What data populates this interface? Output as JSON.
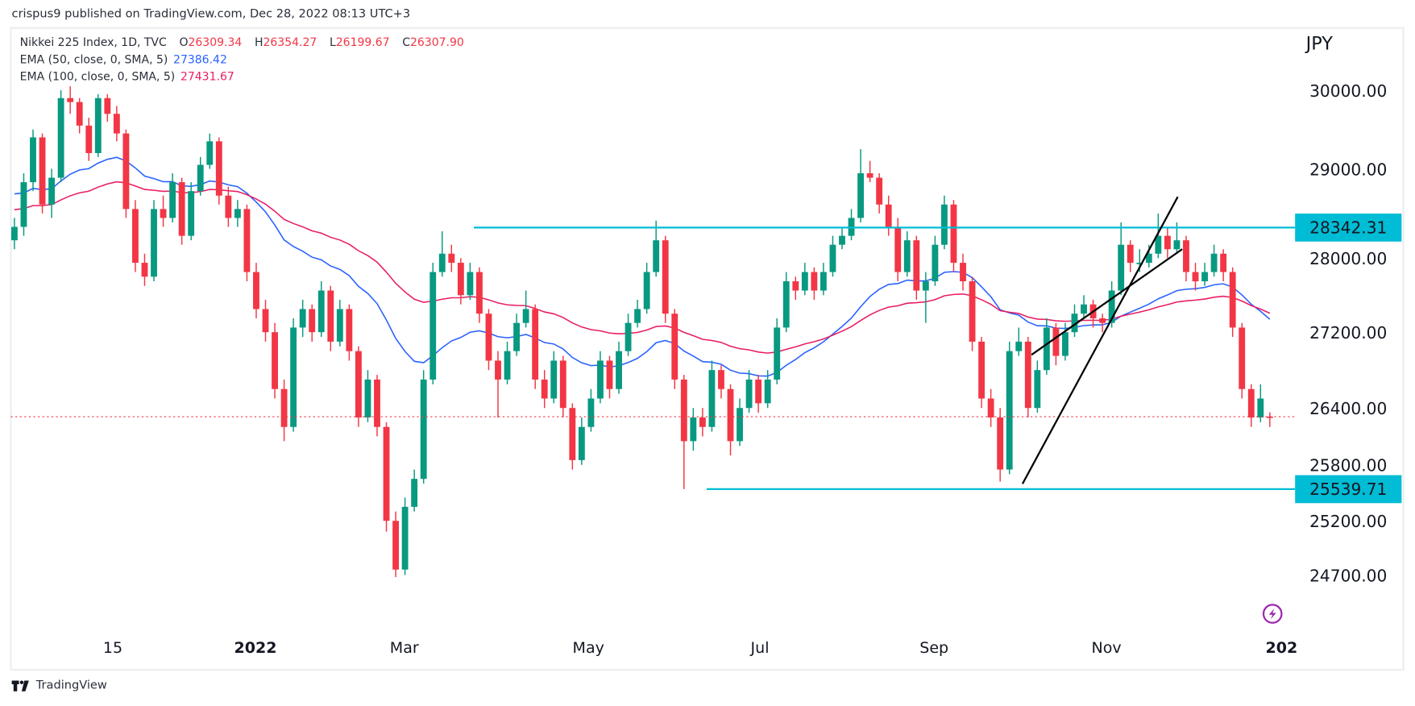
{
  "publisher": "crispus9 published on TradingView.com, Dec 28, 2022 08:13 UTC+3",
  "legend": {
    "symbol": "Nikkei 225 Index, 1D, TVC",
    "open_label": "O",
    "open": "26309.34",
    "high_label": "H",
    "high": "26354.27",
    "low_label": "L",
    "low": "26199.67",
    "close_label": "C",
    "close": "26307.90",
    "ema50_label": "EMA (50, close, 0, SMA, 5)",
    "ema50_value": "27386.42",
    "ema100_label": "EMA (100, close, 0, SMA, 5)",
    "ema100_value": "27431.67"
  },
  "footer": {
    "brand": "TradingView",
    "icon": "tradingview-logo-icon"
  },
  "chart_data": {
    "type": "candlestick",
    "currency": "JPY",
    "colors": {
      "up": "#089981",
      "down": "#f23645",
      "ema50": "#2962ff",
      "ema100": "#e91e63",
      "level": "#00bcd4",
      "last_price": "#f23645",
      "trendline": "#000000"
    },
    "y_scale": "price",
    "y_ticks": [
      "30000.00",
      "29000.00",
      "28000.00",
      "27200.00",
      "26400.00",
      "25800.00",
      "25200.00",
      "24700.00"
    ],
    "x_ticks": [
      {
        "label": "15",
        "bold": false
      },
      {
        "label": "2022",
        "bold": true
      },
      {
        "label": "Mar",
        "bold": false
      },
      {
        "label": "May",
        "bold": false
      },
      {
        "label": "Jul",
        "bold": false
      },
      {
        "label": "Sep",
        "bold": false
      },
      {
        "label": "Nov",
        "bold": false
      },
      {
        "label": "202",
        "bold": true
      }
    ],
    "horizontal_levels": [
      {
        "label": "28342.31",
        "value": 28342.31
      },
      {
        "label": "25539.71",
        "value": 25539.71
      }
    ],
    "last_price": 26307.9,
    "indicators": [
      {
        "name": "EMA (50, close, 0, SMA, 5)",
        "last": 27386.42
      },
      {
        "name": "EMA (100, close, 0, SMA, 5)",
        "last": 27431.67
      }
    ],
    "event_icon": "lightning-icon",
    "ohlc": [
      [
        28200,
        28450,
        28100,
        28350
      ],
      [
        28350,
        28950,
        28250,
        28850
      ],
      [
        28850,
        29500,
        28750,
        29400
      ],
      [
        29400,
        29450,
        28500,
        28600
      ],
      [
        28600,
        29000,
        28450,
        28900
      ],
      [
        28900,
        30000,
        28850,
        29900
      ],
      [
        29900,
        30050,
        29700,
        29850
      ],
      [
        29850,
        29900,
        29450,
        29550
      ],
      [
        29550,
        29650,
        29100,
        29200
      ],
      [
        29200,
        29950,
        29150,
        29900
      ],
      [
        29900,
        29950,
        29600,
        29700
      ],
      [
        29700,
        29800,
        29350,
        29450
      ],
      [
        29450,
        29500,
        28450,
        28550
      ],
      [
        28550,
        28650,
        27850,
        27950
      ],
      [
        27950,
        28050,
        27700,
        27800
      ],
      [
        27800,
        28650,
        27750,
        28550
      ],
      [
        28550,
        28700,
        28350,
        28450
      ],
      [
        28450,
        28950,
        28400,
        28850
      ],
      [
        28850,
        28900,
        28150,
        28250
      ],
      [
        28250,
        28850,
        28200,
        28750
      ],
      [
        28750,
        29150,
        28700,
        29050
      ],
      [
        29050,
        29450,
        29000,
        29350
      ],
      [
        29350,
        29400,
        28600,
        28700
      ],
      [
        28700,
        28800,
        28350,
        28450
      ],
      [
        28450,
        28650,
        28350,
        28550
      ],
      [
        28550,
        28600,
        27750,
        27850
      ],
      [
        27850,
        27950,
        27350,
        27450
      ],
      [
        27450,
        27550,
        27100,
        27200
      ],
      [
        27200,
        27300,
        26500,
        26600
      ],
      [
        26600,
        26700,
        26050,
        26200
      ],
      [
        26200,
        27350,
        26150,
        27250
      ],
      [
        27250,
        27550,
        27150,
        27450
      ],
      [
        27450,
        27500,
        27100,
        27200
      ],
      [
        27200,
        27750,
        27150,
        27650
      ],
      [
        27650,
        27700,
        27000,
        27100
      ],
      [
        27100,
        27550,
        27050,
        27450
      ],
      [
        27450,
        27500,
        26900,
        27000
      ],
      [
        27000,
        27050,
        26200,
        26300
      ],
      [
        26300,
        26800,
        26250,
        26700
      ],
      [
        26700,
        26750,
        26100,
        26200
      ],
      [
        26200,
        26250,
        25100,
        25200
      ],
      [
        25200,
        25300,
        24680,
        24750
      ],
      [
        24750,
        25450,
        24700,
        25350
      ],
      [
        25350,
        25750,
        25300,
        25650
      ],
      [
        25650,
        26800,
        25600,
        26700
      ],
      [
        26700,
        27950,
        26650,
        27850
      ],
      [
        27850,
        28300,
        27800,
        28050
      ],
      [
        28050,
        28150,
        27850,
        27950
      ],
      [
        27950,
        28000,
        27500,
        27600
      ],
      [
        27600,
        27950,
        27550,
        27850
      ],
      [
        27850,
        27900,
        27300,
        27400
      ],
      [
        27400,
        27450,
        26800,
        26900
      ],
      [
        26900,
        27000,
        26300,
        26700
      ],
      [
        26700,
        27100,
        26650,
        27000
      ],
      [
        27000,
        27400,
        26950,
        27300
      ],
      [
        27300,
        27650,
        27250,
        27450
      ],
      [
        27450,
        27500,
        26600,
        26700
      ],
      [
        26700,
        26800,
        26400,
        26500
      ],
      [
        26500,
        27000,
        26450,
        26900
      ],
      [
        26900,
        26950,
        26300,
        26400
      ],
      [
        26400,
        26450,
        25750,
        25850
      ],
      [
        25850,
        26300,
        25800,
        26200
      ],
      [
        26200,
        26600,
        26150,
        26500
      ],
      [
        26500,
        27000,
        26450,
        26900
      ],
      [
        26900,
        26950,
        26500,
        26600
      ],
      [
        26600,
        27100,
        26550,
        27000
      ],
      [
        27000,
        27400,
        26950,
        27300
      ],
      [
        27300,
        27550,
        27250,
        27450
      ],
      [
        27450,
        27950,
        27400,
        27850
      ],
      [
        27850,
        28420,
        27800,
        28200
      ],
      [
        28200,
        28250,
        27300,
        27400
      ],
      [
        27400,
        27450,
        26600,
        26700
      ],
      [
        26700,
        26750,
        25540,
        26050
      ],
      [
        26050,
        26400,
        25950,
        26300
      ],
      [
        26300,
        26400,
        26100,
        26200
      ],
      [
        26200,
        26900,
        26150,
        26800
      ],
      [
        26800,
        26850,
        26500,
        26600
      ],
      [
        26600,
        26650,
        25900,
        26050
      ],
      [
        26050,
        26500,
        26000,
        26400
      ],
      [
        26400,
        26800,
        26350,
        26700
      ],
      [
        26700,
        26750,
        26350,
        26450
      ],
      [
        26450,
        26800,
        26400,
        26700
      ],
      [
        26700,
        27350,
        26650,
        27250
      ],
      [
        27250,
        27850,
        27200,
        27750
      ],
      [
        27750,
        27800,
        27550,
        27650
      ],
      [
        27650,
        27950,
        27600,
        27850
      ],
      [
        27850,
        27900,
        27550,
        27650
      ],
      [
        27650,
        27950,
        27600,
        27850
      ],
      [
        27850,
        28250,
        27800,
        28150
      ],
      [
        28150,
        28350,
        28100,
        28250
      ],
      [
        28250,
        28550,
        28200,
        28450
      ],
      [
        28450,
        29250,
        28400,
        28950
      ],
      [
        28950,
        29100,
        28850,
        28900
      ],
      [
        28900,
        28950,
        28500,
        28600
      ],
      [
        28600,
        28700,
        28250,
        28350
      ],
      [
        28350,
        28450,
        27750,
        27850
      ],
      [
        27850,
        28300,
        27800,
        28200
      ],
      [
        28200,
        28250,
        27550,
        27650
      ],
      [
        27650,
        27850,
        27300,
        27750
      ],
      [
        27750,
        28250,
        27700,
        28150
      ],
      [
        28150,
        28700,
        28100,
        28600
      ],
      [
        28600,
        28650,
        27850,
        27950
      ],
      [
        27950,
        28050,
        27650,
        27750
      ],
      [
        27750,
        27800,
        27000,
        27100
      ],
      [
        27100,
        27150,
        26400,
        26500
      ],
      [
        26500,
        26600,
        26200,
        26300
      ],
      [
        26300,
        26400,
        25620,
        25750
      ],
      [
        25750,
        27100,
        25700,
        27000
      ],
      [
        27000,
        27250,
        26950,
        27100
      ],
      [
        27100,
        27150,
        26300,
        26400
      ],
      [
        26400,
        26900,
        26350,
        26800
      ],
      [
        26800,
        27350,
        26750,
        27250
      ],
      [
        27250,
        27300,
        26850,
        26950
      ],
      [
        26950,
        27300,
        26900,
        27200
      ],
      [
        27200,
        27500,
        27150,
        27400
      ],
      [
        27400,
        27600,
        27350,
        27500
      ],
      [
        27500,
        27550,
        27250,
        27350
      ],
      [
        27350,
        27400,
        27200,
        27300
      ],
      [
        27300,
        27750,
        27250,
        27650
      ],
      [
        27650,
        28400,
        27600,
        28150
      ],
      [
        28150,
        28200,
        27850,
        27950
      ],
      [
        27950,
        28100,
        27850,
        27950
      ],
      [
        27950,
        28150,
        27900,
        28050
      ],
      [
        28050,
        28500,
        28000,
        28250
      ],
      [
        28250,
        28350,
        28000,
        28100
      ],
      [
        28100,
        28400,
        28050,
        28200
      ],
      [
        28200,
        28250,
        27750,
        27850
      ],
      [
        27850,
        27950,
        27650,
        27750
      ],
      [
        27750,
        27950,
        27700,
        27850
      ],
      [
        27850,
        28150,
        27800,
        28050
      ],
      [
        28050,
        28100,
        27750,
        27850
      ],
      [
        27850,
        27900,
        27150,
        27250
      ],
      [
        27250,
        27300,
        26500,
        26600
      ],
      [
        26600,
        26650,
        26200,
        26300
      ],
      [
        26300,
        26650,
        26250,
        26500
      ],
      [
        26309.34,
        26354.27,
        26199.67,
        26307.9
      ]
    ]
  }
}
